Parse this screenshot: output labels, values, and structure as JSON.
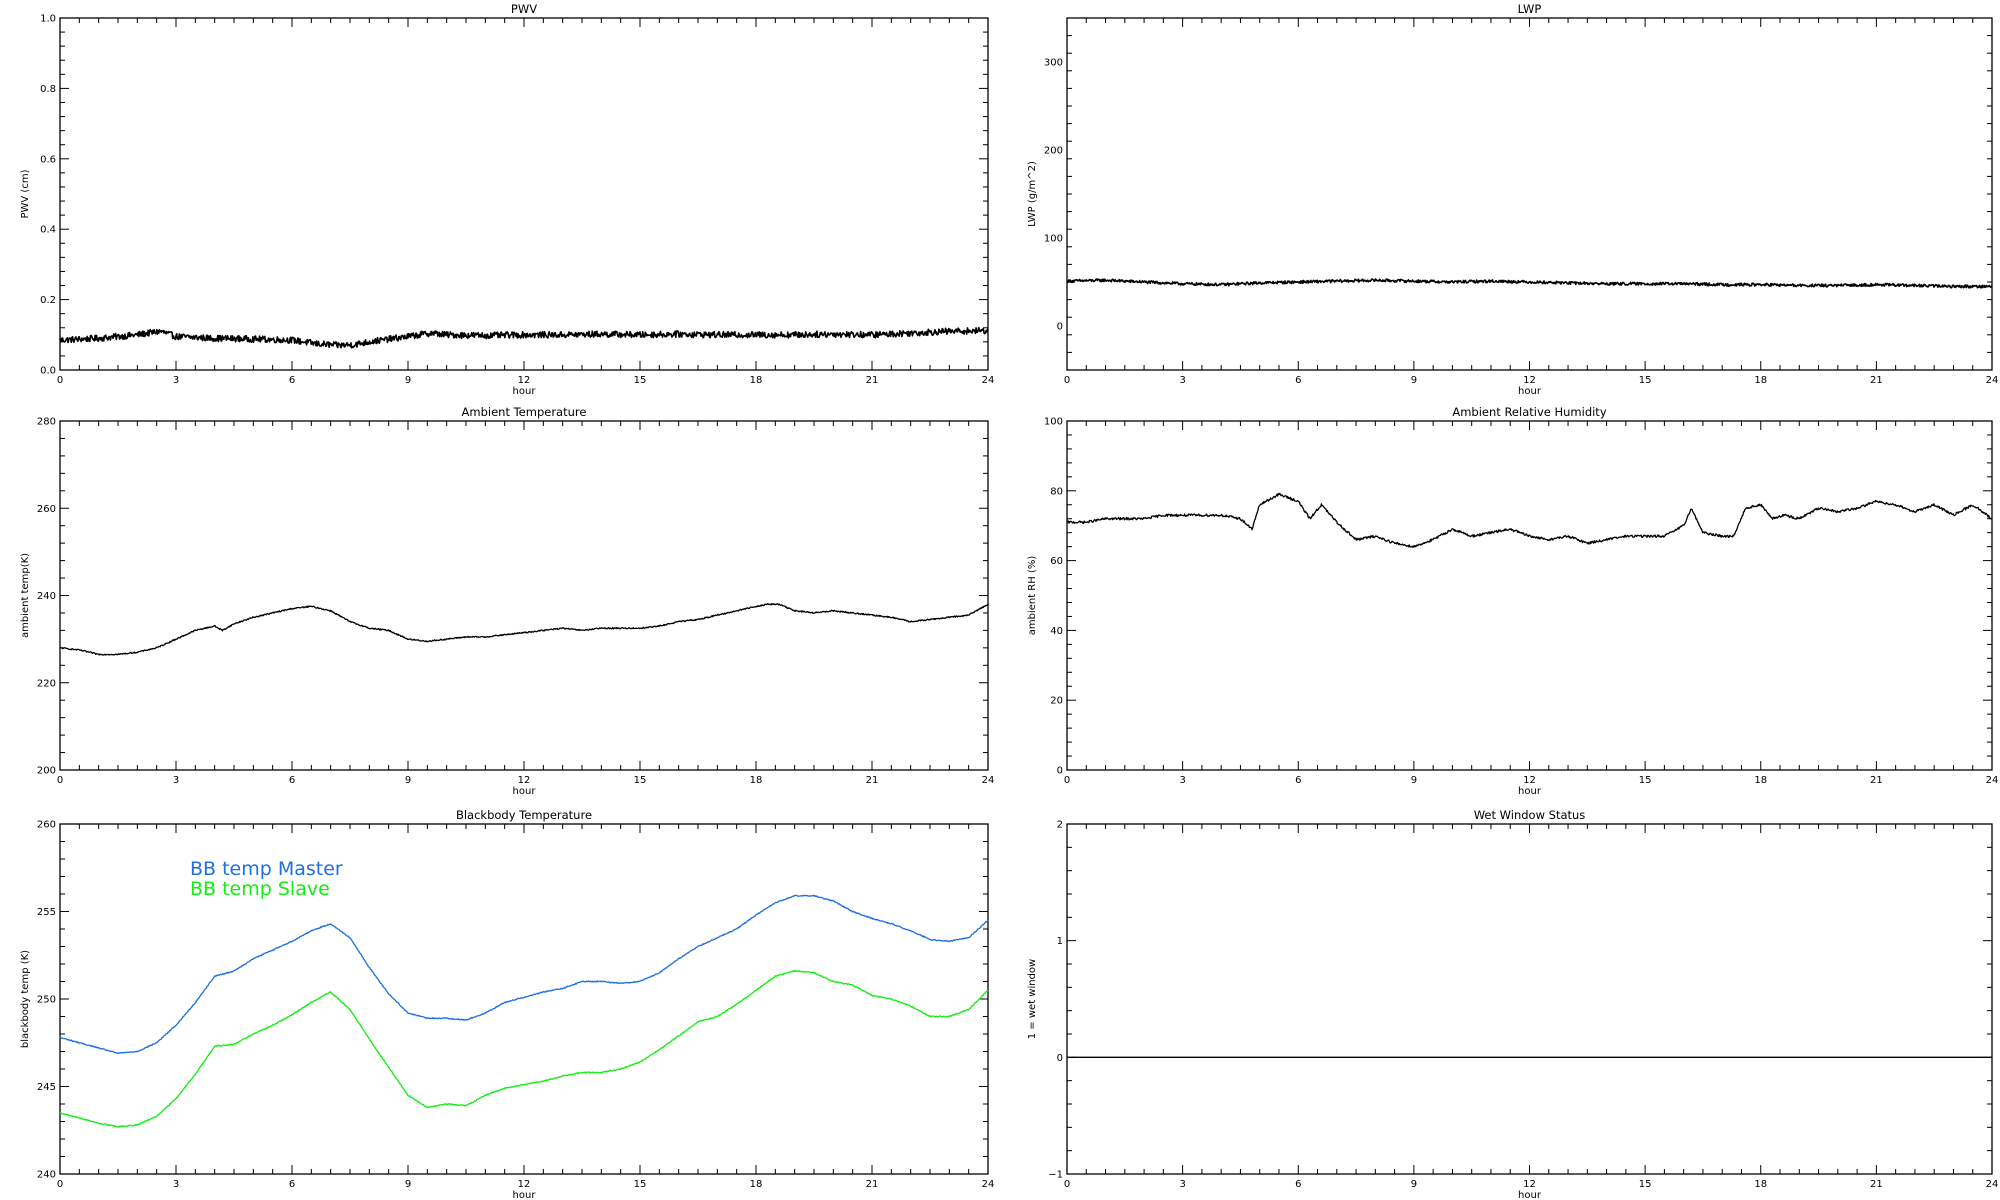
{
  "chart_data": [
    {
      "type": "line",
      "title": "PWV",
      "xlabel": "hour",
      "ylabel": "PWV (cm)",
      "xlim": [
        0,
        24
      ],
      "ylim": [
        0,
        1.0
      ],
      "xticks": [
        0,
        3,
        6,
        9,
        12,
        15,
        18,
        21,
        24
      ],
      "yticks": [
        "0.0",
        "0.2",
        "0.4",
        "0.6",
        "0.8",
        "1.0"
      ],
      "grid": false,
      "noise": 0.009,
      "series": [
        {
          "color": "#000000",
          "x": [
            0,
            1,
            2,
            2.6,
            3,
            4,
            5,
            6,
            6.6,
            7.2,
            7.6,
            8,
            9,
            9.6,
            10,
            11,
            12,
            13,
            14,
            15,
            16,
            17,
            18,
            19,
            20,
            21,
            22,
            23,
            24
          ],
          "y": [
            0.085,
            0.09,
            0.1,
            0.11,
            0.095,
            0.09,
            0.088,
            0.085,
            0.075,
            0.07,
            0.072,
            0.08,
            0.095,
            0.105,
            0.1,
            0.098,
            0.1,
            0.1,
            0.102,
            0.1,
            0.102,
            0.1,
            0.1,
            0.1,
            0.102,
            0.1,
            0.105,
            0.11,
            0.112
          ]
        }
      ]
    },
    {
      "type": "line",
      "title": "LWP",
      "xlabel": "hour",
      "ylabel": "LWP (g/m^2)",
      "xlim": [
        0,
        24
      ],
      "ylim": [
        -50,
        350
      ],
      "xticks": [
        0,
        3,
        6,
        9,
        12,
        15,
        18,
        21,
        24
      ],
      "yticks": [
        "0",
        "100",
        "200",
        "300"
      ],
      "grid": false,
      "noise": 1.6,
      "series": [
        {
          "color": "#000000",
          "x": [
            0,
            1,
            2,
            3,
            4,
            5,
            6,
            7,
            8,
            9,
            10,
            11,
            12,
            13,
            14,
            15,
            16,
            17,
            18,
            19,
            20,
            21,
            22,
            23,
            24
          ],
          "y": [
            51,
            52,
            50,
            48,
            47,
            49,
            50,
            51,
            52,
            51,
            50,
            51,
            50,
            49,
            48,
            48,
            48,
            47,
            47,
            46,
            46,
            47,
            46,
            45,
            45
          ]
        }
      ]
    },
    {
      "type": "line",
      "title": "Ambient Temperature",
      "xlabel": "hour",
      "ylabel": "ambient temp(K)",
      "xlim": [
        0,
        24
      ],
      "ylim": [
        200,
        280
      ],
      "xticks": [
        0,
        3,
        6,
        9,
        12,
        15,
        18,
        21,
        24
      ],
      "yticks": [
        "200",
        "220",
        "240",
        "260",
        "280"
      ],
      "grid": false,
      "noise": 0.15,
      "series": [
        {
          "color": "#000000",
          "x": [
            0,
            0.5,
            1,
            1.5,
            2,
            2.5,
            3,
            3.5,
            4,
            4.2,
            4.5,
            5,
            5.5,
            6,
            6.5,
            7,
            7.5,
            8,
            8.5,
            9,
            9.5,
            10,
            10.5,
            11,
            11.5,
            12,
            12.5,
            13,
            13.5,
            14,
            14.5,
            15,
            15.5,
            16,
            16.5,
            17,
            17.5,
            18,
            18.3,
            18.6,
            19,
            19.5,
            20,
            20.5,
            21,
            21.5,
            22,
            22.5,
            23,
            23.5,
            24
          ],
          "y": [
            228,
            227.5,
            226.5,
            226.5,
            227,
            228,
            230,
            232,
            233,
            232,
            233.5,
            235,
            236,
            237,
            237.5,
            236.5,
            234,
            232.5,
            232,
            230,
            229.5,
            230,
            230.5,
            230.5,
            231,
            231.5,
            232,
            232.5,
            232,
            232.5,
            232.5,
            232.5,
            233,
            234,
            234.5,
            235.5,
            236.5,
            237.5,
            238,
            238,
            236.5,
            236,
            236.5,
            236,
            235.5,
            235,
            234,
            234.5,
            235,
            235.5,
            238
          ]
        }
      ]
    },
    {
      "type": "line",
      "title": "Ambient Relative Humidity",
      "xlabel": "hour",
      "ylabel": "ambient RH (%)",
      "xlim": [
        0,
        24
      ],
      "ylim": [
        0,
        100
      ],
      "xticks": [
        0,
        3,
        6,
        9,
        12,
        15,
        18,
        21,
        24
      ],
      "yticks": [
        "0",
        "20",
        "40",
        "60",
        "80",
        "100"
      ],
      "grid": false,
      "noise": 0.35,
      "series": [
        {
          "color": "#000000",
          "x": [
            0,
            0.5,
            1,
            1.5,
            2,
            2.5,
            3,
            3.5,
            4,
            4.5,
            4.8,
            5,
            5.5,
            6,
            6.3,
            6.6,
            7,
            7.5,
            8,
            8.5,
            9,
            9.5,
            10,
            10.5,
            11,
            11.5,
            12,
            12.5,
            13,
            13.5,
            14,
            14.5,
            15,
            15.5,
            16,
            16.2,
            16.5,
            17,
            17.3,
            17.6,
            18,
            18.3,
            18.6,
            19,
            19.5,
            20,
            20.5,
            21,
            21.5,
            22,
            22.5,
            23,
            23.5,
            24
          ],
          "y": [
            71,
            71,
            72,
            72,
            72,
            73,
            73,
            73,
            73,
            72,
            69,
            76,
            79,
            77,
            72,
            76,
            71,
            66,
            67,
            65,
            64,
            66,
            69,
            67,
            68,
            69,
            67,
            66,
            67,
            65,
            66,
            67,
            67,
            67,
            70,
            75,
            68,
            67,
            67,
            75,
            76,
            72,
            73,
            72,
            75,
            74,
            75,
            77,
            76,
            74,
            76,
            73,
            76,
            72
          ]
        }
      ]
    },
    {
      "type": "line",
      "title": "Blackbody Temperature",
      "xlabel": "hour",
      "ylabel": "blackbody temp (K)",
      "xlim": [
        0,
        24
      ],
      "ylim": [
        240,
        260
      ],
      "xticks": [
        0,
        3,
        6,
        9,
        12,
        15,
        18,
        21,
        24
      ],
      "yticks": [
        "240",
        "245",
        "250",
        "255",
        "260"
      ],
      "grid": false,
      "noise": 0.03,
      "legend": "top-left",
      "series": [
        {
          "name": "BB temp Master",
          "color": "#1f6fe0",
          "x": [
            0,
            0.5,
            1,
            1.5,
            2,
            2.5,
            3,
            3.5,
            4,
            4.5,
            5,
            5.5,
            6,
            6.5,
            7,
            7.5,
            8,
            8.5,
            9,
            9.5,
            10,
            10.5,
            11,
            11.5,
            12,
            12.5,
            13,
            13.5,
            14,
            14.5,
            15,
            15.5,
            16,
            16.5,
            17,
            17.5,
            18,
            18.5,
            19,
            19.5,
            20,
            20.5,
            21,
            21.5,
            22,
            22.5,
            23,
            23.5,
            24
          ],
          "y": [
            247.8,
            247.5,
            247.2,
            246.9,
            247,
            247.5,
            248.5,
            249.8,
            251.3,
            251.6,
            252.3,
            252.8,
            253.3,
            253.9,
            254.3,
            253.5,
            251.8,
            250.3,
            249.2,
            248.9,
            248.9,
            248.8,
            249.2,
            249.8,
            250.1,
            250.4,
            250.6,
            251,
            251,
            250.9,
            251,
            251.5,
            252.3,
            253,
            253.5,
            254,
            254.8,
            255.5,
            255.9,
            255.9,
            255.6,
            255,
            254.6,
            254.3,
            253.9,
            253.4,
            253.3,
            253.5,
            254.5
          ]
        },
        {
          "name": "BB temp Slave",
          "color": "#11ee11",
          "x": [
            0,
            0.5,
            1,
            1.5,
            2,
            2.5,
            3,
            3.5,
            4,
            4.5,
            5,
            5.5,
            6,
            6.5,
            7,
            7.5,
            8,
            8.5,
            9,
            9.5,
            10,
            10.5,
            11,
            11.5,
            12,
            12.5,
            13,
            13.5,
            14,
            14.5,
            15,
            15.5,
            16,
            16.5,
            17,
            17.5,
            18,
            18.5,
            19,
            19.5,
            20,
            20.5,
            21,
            21.5,
            22,
            22.5,
            23,
            23.5,
            24
          ],
          "y": [
            243.5,
            243.2,
            242.9,
            242.7,
            242.8,
            243.3,
            244.3,
            245.7,
            247.3,
            247.4,
            248,
            248.5,
            249.1,
            249.8,
            250.4,
            249.4,
            247.7,
            246.1,
            244.5,
            243.8,
            244,
            243.9,
            244.5,
            244.9,
            245.1,
            245.3,
            245.6,
            245.8,
            245.8,
            246,
            246.4,
            247.1,
            247.9,
            248.7,
            249,
            249.7,
            250.5,
            251.3,
            251.6,
            251.5,
            251,
            250.8,
            250.2,
            250,
            249.6,
            249,
            249,
            249.4,
            250.5
          ]
        }
      ]
    },
    {
      "type": "line",
      "title": "Wet Window Status",
      "xlabel": "hour",
      "ylabel": "1 = wet window",
      "xlim": [
        0,
        24
      ],
      "ylim": [
        -1,
        2
      ],
      "xticks": [
        0,
        3,
        6,
        9,
        12,
        15,
        18,
        21,
        24
      ],
      "yticks": [
        "−1",
        "0",
        "1",
        "2"
      ],
      "grid": false,
      "noise": 0,
      "series": [
        {
          "color": "#000000",
          "x": [
            0,
            24
          ],
          "y": [
            0,
            0
          ]
        }
      ]
    }
  ]
}
